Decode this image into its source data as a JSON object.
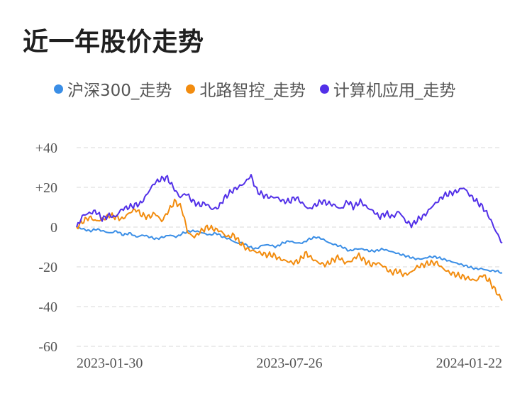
{
  "header": {
    "title": "近一年股价走势"
  },
  "chart_data": {
    "type": "line",
    "title": "近一年股价走势",
    "xlabel": "",
    "ylabel": "",
    "ylim": [
      -60,
      40
    ],
    "y_ticks": [
      40,
      20,
      0,
      -20,
      -40,
      -60
    ],
    "y_tick_labels": [
      "+40",
      "+20",
      "0",
      "-20",
      "-40",
      "-60"
    ],
    "x_tick_labels": [
      "2023-01-30",
      "2023-07-26",
      "2024-01-22"
    ],
    "grid": true,
    "legend_position": "top",
    "series": [
      {
        "name": "沪深300_走势",
        "color": "#3a8ee6",
        "values": [
          0,
          -1,
          -2,
          -1,
          -2,
          -3,
          -2,
          -4,
          -3,
          -5,
          -4,
          -5,
          -6,
          -5,
          -4,
          -5,
          -3,
          -2,
          -2,
          -3,
          -4,
          -3,
          -5,
          -6,
          -8,
          -8,
          -10,
          -11,
          -9,
          -9,
          -10,
          -8,
          -7,
          -8,
          -8,
          -6,
          -5,
          -6,
          -8,
          -9,
          -10,
          -12,
          -11,
          -11,
          -12,
          -12,
          -11,
          -12,
          -13,
          -14,
          -15,
          -16,
          -16,
          -15,
          -15,
          -16,
          -17,
          -18,
          -19,
          -20,
          -21,
          -21,
          -22,
          -22,
          -23
        ]
      },
      {
        "name": "北路智控_走势",
        "color": "#f28c0f",
        "values": [
          0,
          3,
          5,
          3,
          4,
          6,
          5,
          4,
          7,
          9,
          6,
          5,
          7,
          3,
          8,
          13,
          10,
          -3,
          -5,
          -2,
          0,
          -1,
          -2,
          -5,
          -4,
          -8,
          -11,
          -12,
          -13,
          -14,
          -14,
          -16,
          -17,
          -18,
          -17,
          -13,
          -16,
          -18,
          -19,
          -17,
          -15,
          -18,
          -17,
          -14,
          -17,
          -19,
          -18,
          -20,
          -23,
          -22,
          -24,
          -23,
          -20,
          -19,
          -18,
          -18,
          -21,
          -23,
          -24,
          -25,
          -26,
          -27,
          -24,
          -27,
          -32,
          -37
        ]
      },
      {
        "name": "计算机应用_走势",
        "color": "#5230e8",
        "values": [
          0,
          6,
          7,
          8,
          4,
          6,
          5,
          9,
          10,
          11,
          12,
          17,
          22,
          24,
          25,
          20,
          15,
          17,
          13,
          11,
          12,
          9,
          10,
          15,
          18,
          20,
          22,
          26,
          18,
          16,
          15,
          15,
          13,
          13,
          15,
          12,
          9,
          11,
          13,
          12,
          11,
          9,
          13,
          10,
          13,
          10,
          8,
          5,
          7,
          5,
          8,
          3,
          1,
          4,
          6,
          10,
          13,
          16,
          17,
          18,
          20,
          16,
          13,
          10,
          5,
          -2,
          -8
        ]
      }
    ]
  }
}
